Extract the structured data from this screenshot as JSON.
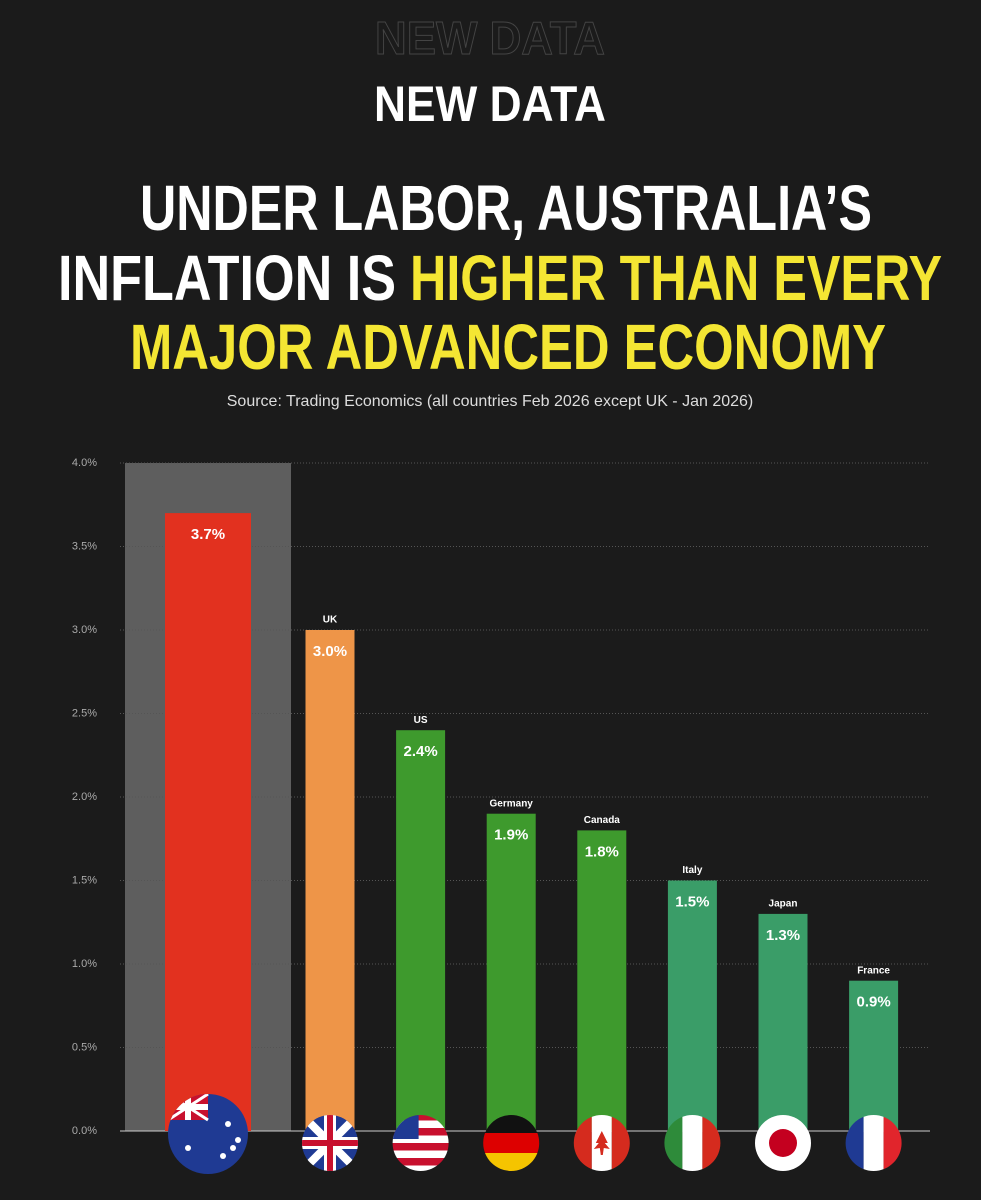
{
  "chart_data": {
    "type": "bar",
    "kicker": "NEW DATA",
    "title_lines": [
      "UNDER LABOR, AUSTRALIA’S",
      "INFLATION IS",
      "HIGHER THAN EVERY",
      "MAJOR ADVANCED ECONOMY"
    ],
    "highlight_color": "#f4e633",
    "source": "Source: Trading Economics (all countries Feb 2026 except UK - Jan 2026)",
    "categories": [
      null,
      "UK",
      "US",
      "Germany",
      "Canada",
      "Italy",
      "Japan",
      "France"
    ],
    "values": [
      3.7,
      3.0,
      2.4,
      1.9,
      1.8,
      1.5,
      1.3,
      0.9
    ],
    "value_labels": [
      "3.7%",
      "3.0%",
      "2.4%",
      "1.9%",
      "1.8%",
      "1.5%",
      "1.3%",
      "0.9%"
    ],
    "colors": [
      "#e2311f",
      "#ee9548",
      "#3e9a2d",
      "#3e9a2d",
      "#3e9a2d",
      "#3a9d68",
      "#3a9d68",
      "#3a9d68"
    ],
    "ylim": [
      0,
      4
    ],
    "yticks": [
      {
        "value": 0,
        "label": "0.0%"
      },
      {
        "value": 0.5,
        "label": "0.5%"
      },
      {
        "value": 1,
        "label": "1.0%"
      },
      {
        "value": 1.5,
        "label": "1.5%"
      },
      {
        "value": 2,
        "label": "2.0%"
      },
      {
        "value": 2.5,
        "label": "2.5%"
      },
      {
        "value": 3,
        "label": "3.0%"
      },
      {
        "value": 3.5,
        "label": "3.5%"
      },
      {
        "value": 4,
        "label": "4.0%"
      }
    ],
    "grid": true
  }
}
